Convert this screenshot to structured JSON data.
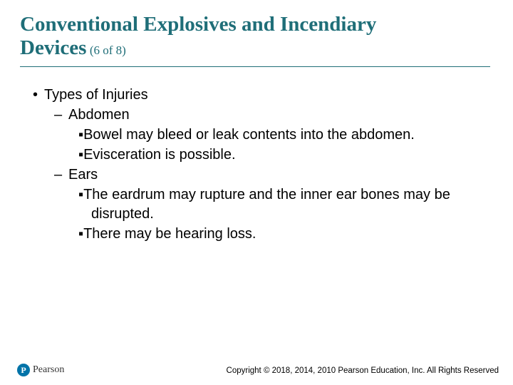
{
  "title": {
    "main": "Conventional Explosives and Incendiary Devices",
    "sub": "(6 of 8)",
    "color": "#1f6e78",
    "main_fontsize": 29,
    "sub_fontsize": 17,
    "underline_color": "#1f6e78"
  },
  "content": {
    "fontsize": 20,
    "text_color": "#000000",
    "items": [
      {
        "level": 1,
        "marker": "•",
        "text": "Types of Injuries"
      },
      {
        "level": 2,
        "marker": "–",
        "text": "Abdomen"
      },
      {
        "level": 3,
        "marker": "▪",
        "text": "Bowel may bleed or leak contents into the abdomen."
      },
      {
        "level": 3,
        "marker": "▪",
        "text": "Evisceration is possible."
      },
      {
        "level": 2,
        "marker": "–",
        "text": "Ears"
      },
      {
        "level": 3,
        "marker": "▪",
        "text": "The eardrum may rupture and the inner ear bones may be disrupted."
      },
      {
        "level": 3,
        "marker": "▪",
        "text": "There may be hearing loss."
      }
    ]
  },
  "footer": {
    "logo_letter": "P",
    "logo_name": "Pearson",
    "logo_circle_color": "#0073a8",
    "copyright": "Copyright © 2018, 2014, 2010 Pearson Education, Inc. All Rights Reserved"
  }
}
